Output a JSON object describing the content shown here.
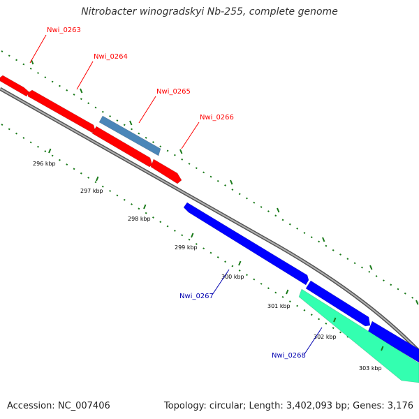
{
  "title": "Nitrobacter winogradskyi Nb-255, complete genome",
  "footer": {
    "accession": "Accession: NC_007406",
    "summary": "Topology: circular; Length: 3,402,093 bp; Genes: 3,176"
  },
  "colors": {
    "forward_gene": "#ff0000",
    "forward_gene_alt": "#4a86b8",
    "reverse_gene": "#0000ff",
    "reverse_gene_alt": "#33ffb0",
    "backbone": "#8c8c8c",
    "tick": "#1a7a1a",
    "forward_label": "#ff0000",
    "reverse_label": "#0000b0"
  },
  "genes": [
    {
      "name": "Nwi_0263",
      "strand": "+"
    },
    {
      "name": "Nwi_0264",
      "strand": "+"
    },
    {
      "name": "Nwi_0265",
      "strand": "+"
    },
    {
      "name": "Nwi_0266",
      "strand": "+"
    },
    {
      "name": "Nwi_0267",
      "strand": "-"
    },
    {
      "name": "Nwi_0268",
      "strand": "-"
    }
  ],
  "ticks": [
    "296 kbp",
    "297 kbp",
    "298 kbp",
    "299 kbp",
    "300 kbp",
    "301 kbp",
    "302 kbp",
    "303 kbp"
  ]
}
